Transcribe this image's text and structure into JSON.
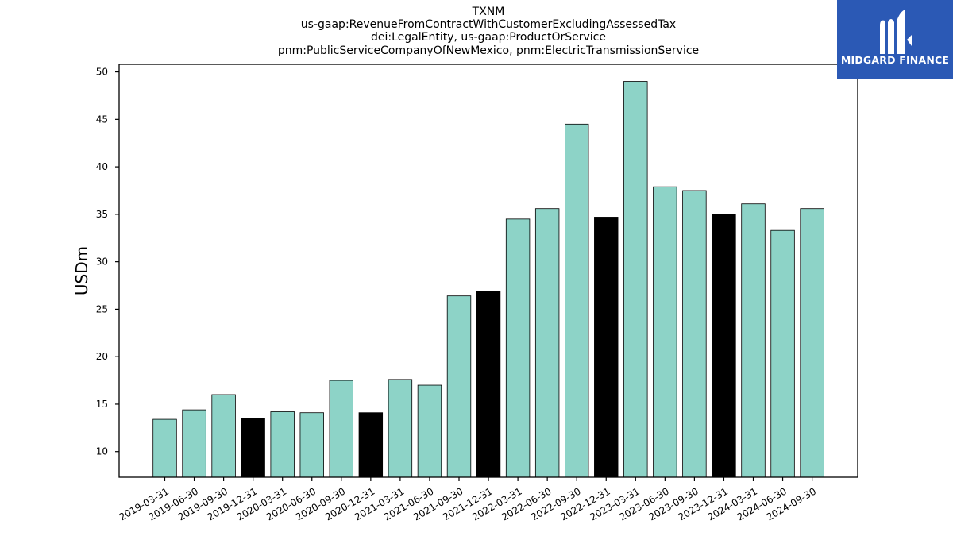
{
  "title_lines": [
    "TXNM",
    "us-gaap:RevenueFromContractWithCustomerExcludingAssessedTax",
    "dei:LegalEntity, us-gaap:ProductOrService",
    "pnm:PublicServiceCompanyOfNewMexico, pnm:ElectricTransmissionService"
  ],
  "logo": {
    "name": "MIDGARD FINANCE",
    "icon": "midgard-logo-icon",
    "color": "#2b59b5"
  },
  "colors": {
    "regular": "#8dd3c7",
    "year_end": "#000000"
  },
  "chart_data": {
    "type": "bar",
    "ylabel": "USDm",
    "ylim": [
      7.3,
      50.8
    ],
    "yticks": [
      10,
      15,
      20,
      25,
      30,
      35,
      40,
      45,
      50
    ],
    "categories": [
      "2019-03-31",
      "2019-06-30",
      "2019-09-30",
      "2019-12-31",
      "2020-03-31",
      "2020-06-30",
      "2020-09-30",
      "2020-12-31",
      "2021-03-31",
      "2021-06-30",
      "2021-09-30",
      "2021-12-31",
      "2022-03-31",
      "2022-06-30",
      "2022-09-30",
      "2022-12-31",
      "2023-03-31",
      "2023-06-30",
      "2023-09-30",
      "2023-12-31",
      "2024-03-31",
      "2024-06-30",
      "2024-09-30"
    ],
    "values": [
      13.4,
      14.4,
      16.0,
      13.5,
      14.2,
      14.1,
      17.5,
      14.1,
      17.6,
      17.0,
      26.4,
      26.9,
      34.5,
      35.6,
      44.5,
      34.7,
      49.0,
      37.9,
      37.5,
      35.0,
      36.1,
      33.3,
      35.6
    ],
    "highlight": [
      false,
      false,
      false,
      true,
      false,
      false,
      false,
      true,
      false,
      false,
      false,
      true,
      false,
      false,
      false,
      true,
      false,
      false,
      false,
      true,
      false,
      false,
      false
    ],
    "grid": false,
    "legend": "none"
  }
}
